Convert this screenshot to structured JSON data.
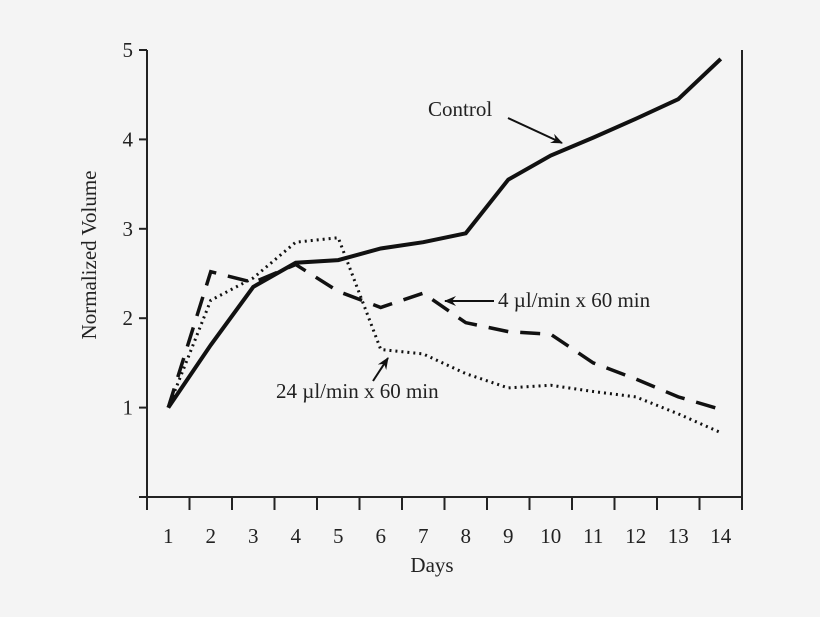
{
  "chart_data": {
    "type": "line",
    "title": "",
    "xlabel": "Days",
    "ylabel": "Normalized Volume",
    "xlim": [
      0.5,
      14.5
    ],
    "ylim": [
      0,
      5
    ],
    "x_ticks": [
      "1",
      "2",
      "3",
      "4",
      "5",
      "6",
      "7",
      "8",
      "9",
      "10",
      "11",
      "12",
      "13",
      "14"
    ],
    "y_ticks": [
      "1",
      "2",
      "3",
      "4",
      "5"
    ],
    "grid": false,
    "x": [
      1,
      2,
      3,
      4,
      5,
      6,
      7,
      8,
      9,
      10,
      11,
      12,
      13,
      14
    ],
    "series": [
      {
        "name": "Control",
        "style": "solid",
        "values": [
          1.0,
          1.7,
          2.35,
          2.62,
          2.65,
          2.78,
          2.85,
          2.95,
          3.55,
          3.82,
          4.02,
          4.23,
          4.45,
          4.9
        ]
      },
      {
        "name": "4 µl/min x 60 min",
        "style": "dashed",
        "values": [
          1.0,
          2.52,
          2.4,
          2.6,
          2.3,
          2.12,
          2.28,
          1.95,
          1.85,
          1.82,
          1.5,
          1.32,
          1.12,
          0.98
        ]
      },
      {
        "name": "24 µl/min x 60 min",
        "style": "dotted",
        "values": [
          1.0,
          2.2,
          2.45,
          2.85,
          2.9,
          1.65,
          1.6,
          1.38,
          1.22,
          1.25,
          1.18,
          1.12,
          0.93,
          0.72
        ]
      }
    ],
    "annotations": [
      {
        "text": "Control",
        "series": 0
      },
      {
        "text": "4 µl/min x 60 min",
        "series": 1
      },
      {
        "text": "24 µl/min x 60 min",
        "series": 2
      }
    ]
  }
}
